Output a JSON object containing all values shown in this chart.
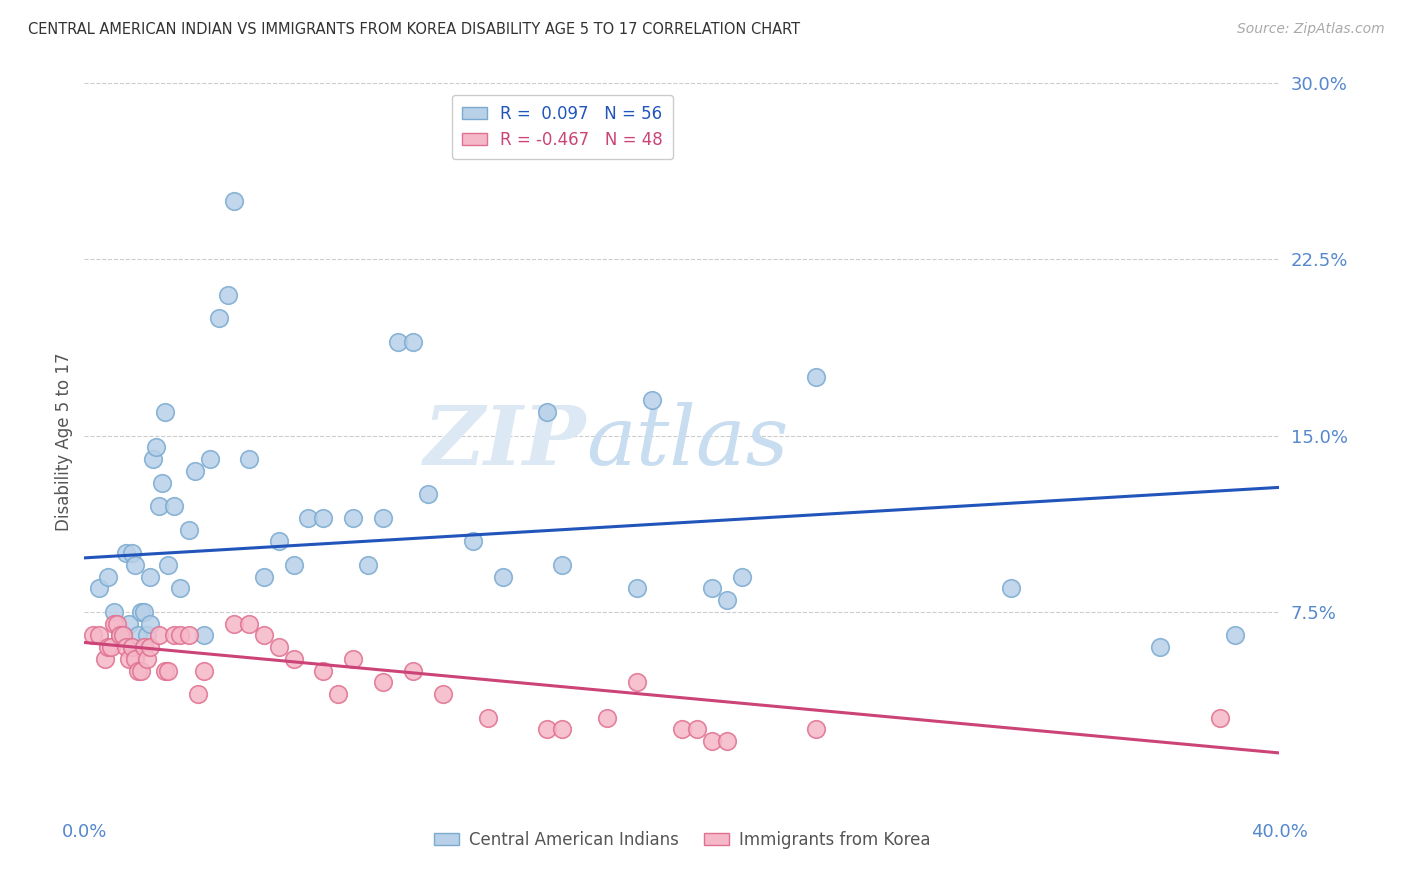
{
  "title": "CENTRAL AMERICAN INDIAN VS IMMIGRANTS FROM KOREA DISABILITY AGE 5 TO 17 CORRELATION CHART",
  "source": "Source: ZipAtlas.com",
  "ylabel": "Disability Age 5 to 17",
  "xmin": 0.0,
  "xmax": 0.4,
  "ymin": -0.01,
  "ymax": 0.305,
  "yticks": [
    0.075,
    0.15,
    0.225,
    0.3
  ],
  "ytick_labels": [
    "7.5%",
    "15.0%",
    "22.5%",
    "30.0%"
  ],
  "series1_label": "Central American Indians",
  "series1_color": "#b8d0e8",
  "series1_edge": "#7aaad0",
  "series1_R": 0.097,
  "series1_N": 56,
  "series1_line_color": "#2255bb",
  "series2_label": "Immigrants from Korea",
  "series2_color": "#f5b8c8",
  "series2_edge": "#e07090",
  "series2_R": -0.467,
  "series2_N": 48,
  "series2_line_color": "#cc4477",
  "watermark_zip": "ZIP",
  "watermark_atlas": "atlas",
  "background_color": "#ffffff",
  "grid_color": "#cccccc",
  "title_color": "#333333",
  "axis_color": "#5588cc",
  "blue_x": [
    0.005,
    0.008,
    0.01,
    0.012,
    0.013,
    0.014,
    0.015,
    0.016,
    0.016,
    0.017,
    0.018,
    0.019,
    0.02,
    0.021,
    0.022,
    0.022,
    0.023,
    0.024,
    0.025,
    0.026,
    0.027,
    0.028,
    0.03,
    0.032,
    0.035,
    0.037,
    0.04,
    0.042,
    0.045,
    0.048,
    0.05,
    0.055,
    0.06,
    0.065,
    0.07,
    0.075,
    0.08,
    0.09,
    0.095,
    0.1,
    0.105,
    0.11,
    0.115,
    0.13,
    0.14,
    0.155,
    0.16,
    0.185,
    0.19,
    0.21,
    0.215,
    0.22,
    0.245,
    0.31,
    0.36,
    0.385
  ],
  "blue_y": [
    0.085,
    0.09,
    0.075,
    0.065,
    0.065,
    0.1,
    0.07,
    0.06,
    0.1,
    0.095,
    0.065,
    0.075,
    0.075,
    0.065,
    0.07,
    0.09,
    0.14,
    0.145,
    0.12,
    0.13,
    0.16,
    0.095,
    0.12,
    0.085,
    0.11,
    0.135,
    0.065,
    0.14,
    0.2,
    0.21,
    0.25,
    0.14,
    0.09,
    0.105,
    0.095,
    0.115,
    0.115,
    0.115,
    0.095,
    0.115,
    0.19,
    0.19,
    0.125,
    0.105,
    0.09,
    0.16,
    0.095,
    0.085,
    0.165,
    0.085,
    0.08,
    0.09,
    0.175,
    0.085,
    0.06,
    0.065
  ],
  "pink_x": [
    0.003,
    0.005,
    0.007,
    0.008,
    0.009,
    0.01,
    0.011,
    0.012,
    0.013,
    0.014,
    0.015,
    0.016,
    0.017,
    0.018,
    0.019,
    0.02,
    0.021,
    0.022,
    0.025,
    0.027,
    0.028,
    0.03,
    0.032,
    0.035,
    0.038,
    0.04,
    0.05,
    0.055,
    0.06,
    0.065,
    0.07,
    0.08,
    0.085,
    0.09,
    0.1,
    0.11,
    0.12,
    0.135,
    0.155,
    0.16,
    0.175,
    0.185,
    0.2,
    0.205,
    0.21,
    0.215,
    0.245,
    0.38
  ],
  "pink_y": [
    0.065,
    0.065,
    0.055,
    0.06,
    0.06,
    0.07,
    0.07,
    0.065,
    0.065,
    0.06,
    0.055,
    0.06,
    0.055,
    0.05,
    0.05,
    0.06,
    0.055,
    0.06,
    0.065,
    0.05,
    0.05,
    0.065,
    0.065,
    0.065,
    0.04,
    0.05,
    0.07,
    0.07,
    0.065,
    0.06,
    0.055,
    0.05,
    0.04,
    0.055,
    0.045,
    0.05,
    0.04,
    0.03,
    0.025,
    0.025,
    0.03,
    0.045,
    0.025,
    0.025,
    0.02,
    0.02,
    0.025,
    0.03
  ],
  "blue_line_x0": 0.0,
  "blue_line_x1": 0.4,
  "blue_line_y0": 0.098,
  "blue_line_y1": 0.128,
  "pink_line_x0": 0.0,
  "pink_line_x1": 0.4,
  "pink_line_y0": 0.062,
  "pink_line_y1": 0.015
}
